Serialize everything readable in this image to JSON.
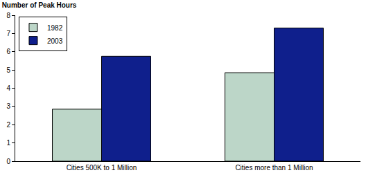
{
  "chart_data": {
    "type": "bar",
    "title": "Number of Peak Hours",
    "categories": [
      "Cities 500K to 1 Million",
      "Cities more than 1 Million"
    ],
    "series": [
      {
        "name": "1982",
        "color": "#bcd6c8",
        "values": [
          2.85,
          4.85
        ]
      },
      {
        "name": "2003",
        "color": "#0f1f8c",
        "values": [
          5.75,
          7.3
        ]
      }
    ],
    "ylim": [
      0,
      8
    ],
    "yticks": [
      0,
      1,
      2,
      3,
      4,
      5,
      6,
      7,
      8
    ],
    "grid": false,
    "legend": "top-left"
  }
}
